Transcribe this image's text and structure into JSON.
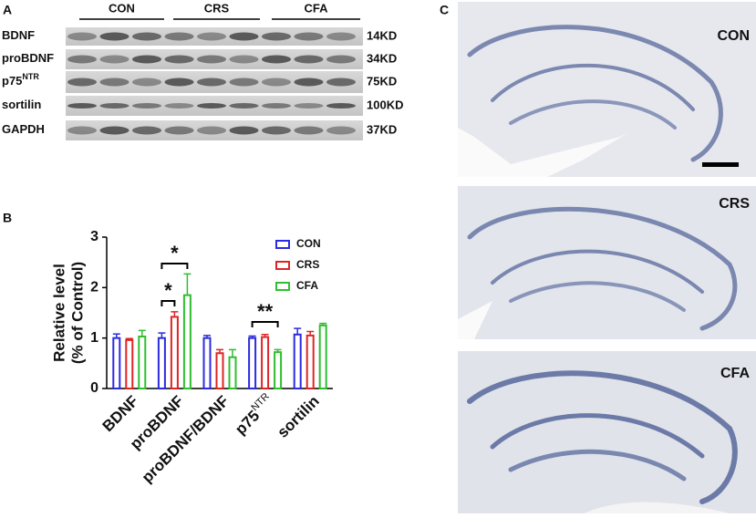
{
  "panel_labels": [
    "A",
    "B",
    "C"
  ],
  "blot": {
    "groups": [
      "CON",
      "CRS",
      "CFA"
    ],
    "rows": [
      {
        "label": "BDNF",
        "size": "14KD"
      },
      {
        "label": "proBDNF",
        "size": "34KD"
      },
      {
        "label": "p75",
        "label_sup": "NTR",
        "size": "75KD"
      },
      {
        "label": "sortilin",
        "size": "100KD"
      },
      {
        "label": "GAPDH",
        "size": "37KD"
      }
    ]
  },
  "chart_data": {
    "type": "bar",
    "ylabel": [
      "Relative level",
      "(% of Control)"
    ],
    "categories": [
      "BDNF",
      "proBDNF",
      "proBDNF/BDNF",
      "p75",
      "sortilin"
    ],
    "category_superscripts": [
      null,
      null,
      null,
      "NTR",
      null
    ],
    "series": [
      {
        "name": "CON",
        "color": "#2b2be0",
        "values": [
          1,
          1,
          1,
          1,
          1.07
        ],
        "errors": [
          0.08,
          0.1,
          0.05,
          0.04,
          0.12
        ]
      },
      {
        "name": "CRS",
        "color": "#e02424",
        "values": [
          0.96,
          1.42,
          0.7,
          1.02,
          1.05
        ],
        "errors": [
          0.03,
          0.1,
          0.07,
          0.05,
          0.08
        ]
      },
      {
        "name": "CFA",
        "color": "#2fbf2f",
        "values": [
          1.03,
          1.85,
          0.62,
          0.72,
          1.25
        ],
        "errors": [
          0.12,
          0.42,
          0.15,
          0.05,
          0.04
        ]
      }
    ],
    "ylim": [
      0,
      3
    ],
    "yticks": [
      0,
      1,
      2,
      3
    ],
    "annotations": [
      "*",
      "*",
      "**"
    ]
  },
  "histology": {
    "labels": [
      "CON",
      "CRS",
      "CFA"
    ]
  }
}
